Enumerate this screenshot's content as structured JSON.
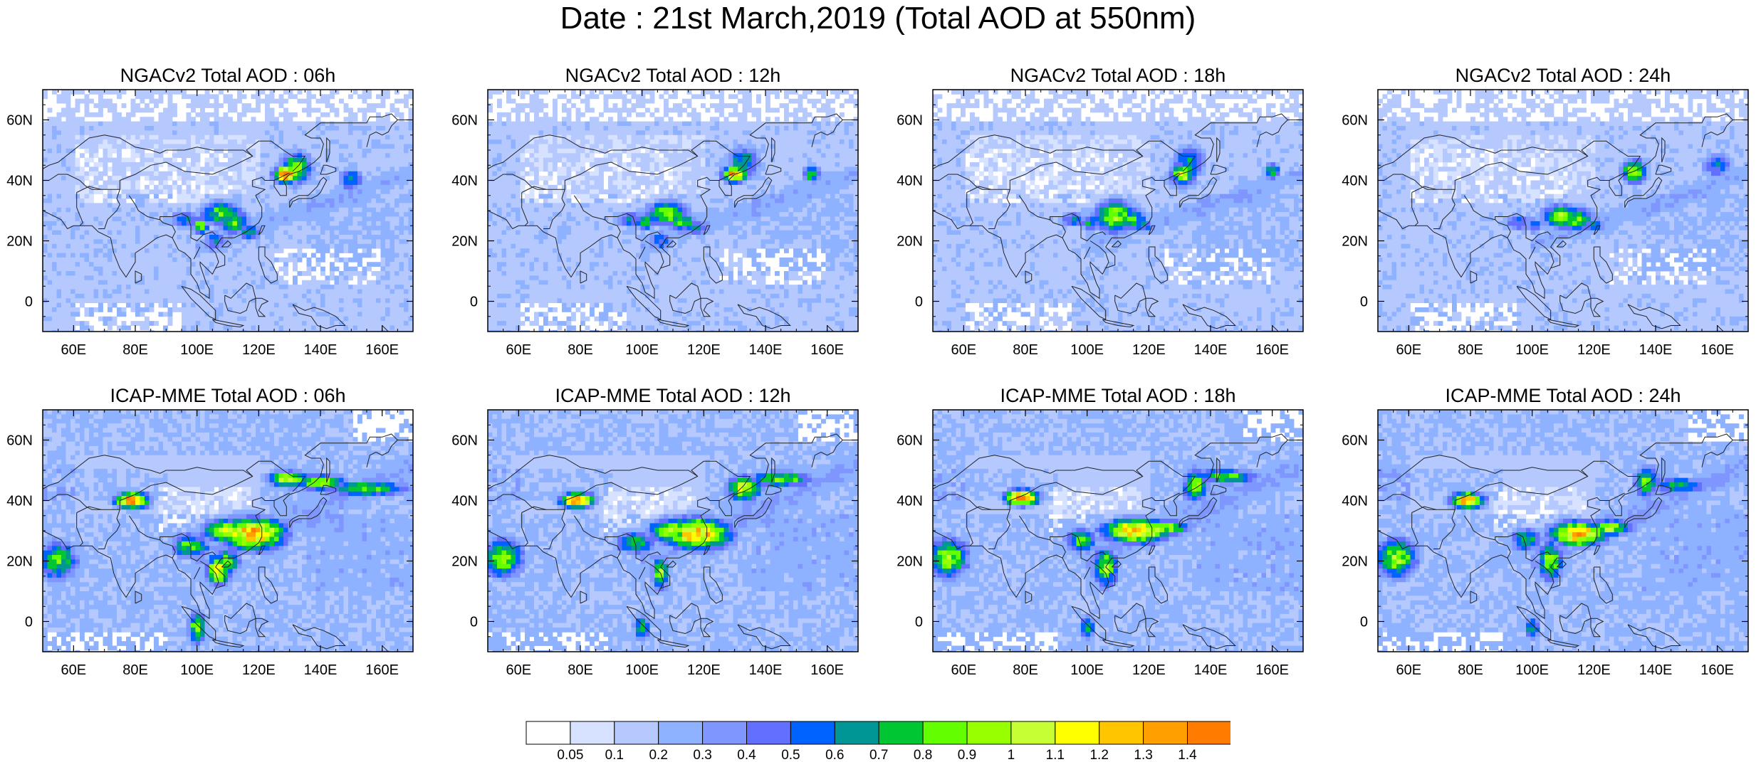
{
  "title": "Date : 21st March,2019 (Total AOD at 550nm)",
  "x_ticks": [
    "60E",
    "80E",
    "100E",
    "120E",
    "140E",
    "160E"
  ],
  "y_ticks": [
    "60N",
    "40N",
    "20N",
    "0"
  ],
  "panels": [
    {
      "title": "NGACv2 Total AOD : 06h",
      "model": "NGACv2",
      "lead": "06h"
    },
    {
      "title": "NGACv2 Total AOD : 12h",
      "model": "NGACv2",
      "lead": "12h"
    },
    {
      "title": "NGACv2 Total AOD : 18h",
      "model": "NGACv2",
      "lead": "18h"
    },
    {
      "title": "NGACv2 Total AOD : 24h",
      "model": "NGACv2",
      "lead": "24h"
    },
    {
      "title": "ICAP-MME Total AOD : 06h",
      "model": "ICAP-MME",
      "lead": "06h"
    },
    {
      "title": "ICAP-MME Total AOD : 12h",
      "model": "ICAP-MME",
      "lead": "12h"
    },
    {
      "title": "ICAP-MME Total AOD : 18h",
      "model": "ICAP-MME",
      "lead": "18h"
    },
    {
      "title": "ICAP-MME Total AOD : 24h",
      "model": "ICAP-MME",
      "lead": "24h"
    }
  ],
  "colorbar": {
    "labels": [
      "0.05",
      "0.1",
      "0.2",
      "0.3",
      "0.4",
      "0.5",
      "0.6",
      "0.7",
      "0.8",
      "0.9",
      "1",
      "1.1",
      "1.2",
      "1.3",
      "1.4"
    ],
    "colors": [
      "#ffffff",
      "#d6e2ff",
      "#b5c9ff",
      "#8eb2ff",
      "#7f96ff",
      "#6370ff",
      "#0063ff",
      "#009696",
      "#00c633",
      "#63ff00",
      "#96ff00",
      "#c6ff33",
      "#ffff00",
      "#ffc600",
      "#ffa000",
      "#ff7c00",
      "#ff1900"
    ]
  }
}
